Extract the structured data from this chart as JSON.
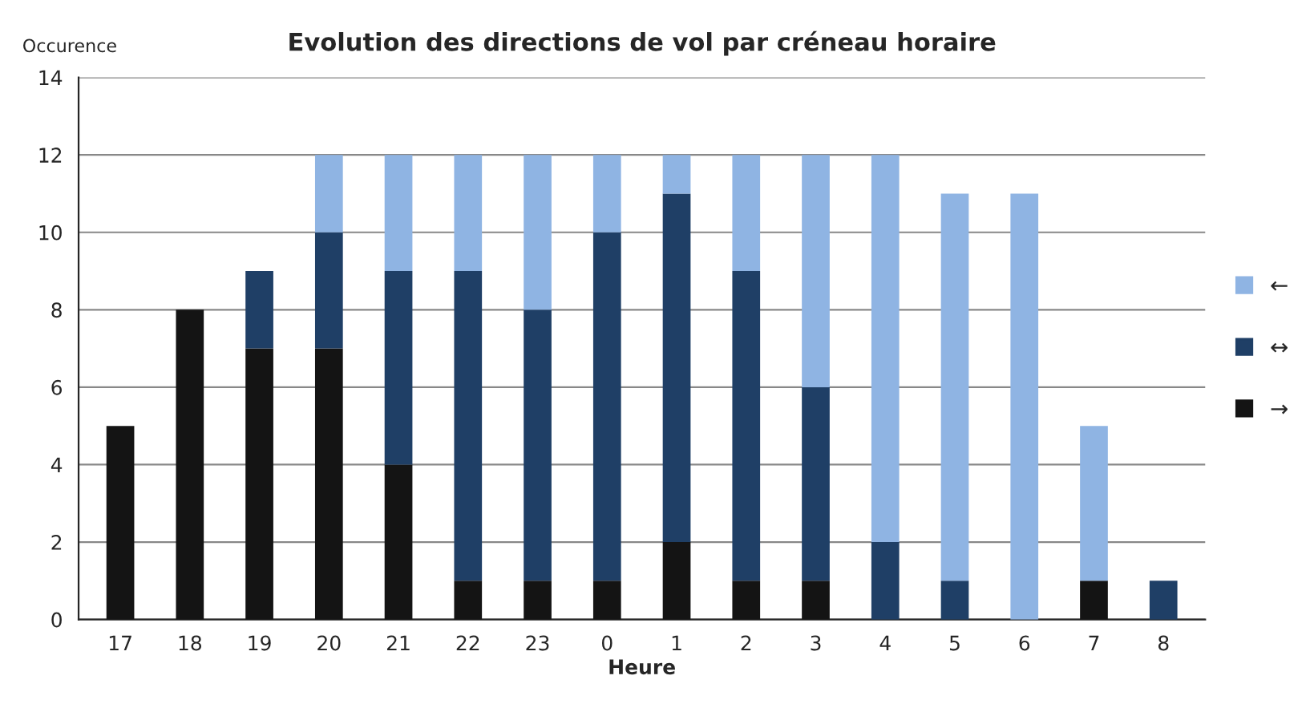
{
  "chart_data": {
    "type": "bar",
    "title": "Evolution des directions de vol par créneau horaire",
    "xlabel": "Heure",
    "ylabel": "Occurence",
    "categories": [
      "17",
      "18",
      "19",
      "20",
      "21",
      "22",
      "23",
      "0",
      "1",
      "2",
      "3",
      "4",
      "5",
      "6",
      "7",
      "8"
    ],
    "stacked": true,
    "ylim": [
      0,
      14
    ],
    "yticks": [
      0,
      2,
      4,
      6,
      8,
      10,
      12,
      14
    ],
    "grid": "y",
    "legend": "right",
    "series": [
      {
        "name": "→",
        "color": "#141414",
        "values": [
          5,
          8,
          7,
          7,
          4,
          1,
          1,
          1,
          2,
          1,
          1,
          0,
          0,
          0,
          1,
          0
        ]
      },
      {
        "name": "↔",
        "color": "#1f3f66",
        "values": [
          0,
          0,
          2,
          3,
          5,
          8,
          7,
          9,
          9,
          8,
          5,
          2,
          1,
          0,
          0,
          1
        ]
      },
      {
        "name": "←",
        "color": "#8fb4e3",
        "values": [
          0,
          0,
          0,
          2,
          3,
          3,
          4,
          2,
          1,
          3,
          6,
          10,
          10,
          11,
          4,
          0
        ]
      }
    ]
  }
}
